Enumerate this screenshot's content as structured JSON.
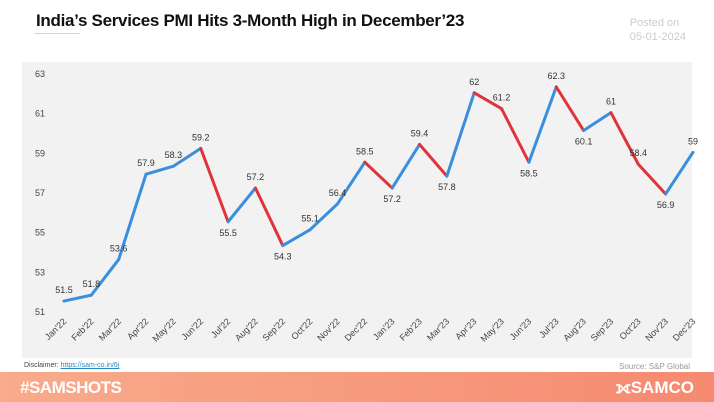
{
  "header": {
    "title": "India’s Services PMI Hits 3-Month High in December’23",
    "posted_label": "Posted on",
    "posted_date": "05-01-2024"
  },
  "footer": {
    "disclaimer_label": "Disclaimer:",
    "disclaimer_link": "https://sam-co.in/6j",
    "source": "Source:  S&P Global",
    "hashtag": "#SAMSHOTS",
    "logo": "SAMCO"
  },
  "chart_data": {
    "type": "line",
    "categories": [
      "Jan'22",
      "Feb'22",
      "Mar'22",
      "Apr'22",
      "May'22",
      "Jun'22",
      "Jul'22",
      "Aug'22",
      "Sep'22",
      "Oct'22",
      "Nov'22",
      "Dec'22",
      "Jan'23",
      "Feb'23",
      "Mar'23",
      "Apr'23",
      "May'23",
      "Jun'23",
      "Jul'23",
      "Aug'23",
      "Sep'23",
      "Oct'23",
      "Nov'23",
      "Dec'23"
    ],
    "values": [
      51.5,
      51.8,
      53.6,
      57.9,
      58.3,
      59.2,
      55.5,
      57.2,
      54.3,
      55.1,
      56.4,
      58.5,
      57.2,
      59.4,
      57.8,
      62,
      61.2,
      58.5,
      62.3,
      60.1,
      61,
      58.4,
      56.9,
      59
    ],
    "yticks": [
      51,
      53,
      55,
      57,
      59,
      61,
      63
    ],
    "ylim": [
      51,
      63
    ],
    "grid": false,
    "colors": {
      "rise": "#3a8fdd",
      "fall": "#e0343a"
    }
  }
}
